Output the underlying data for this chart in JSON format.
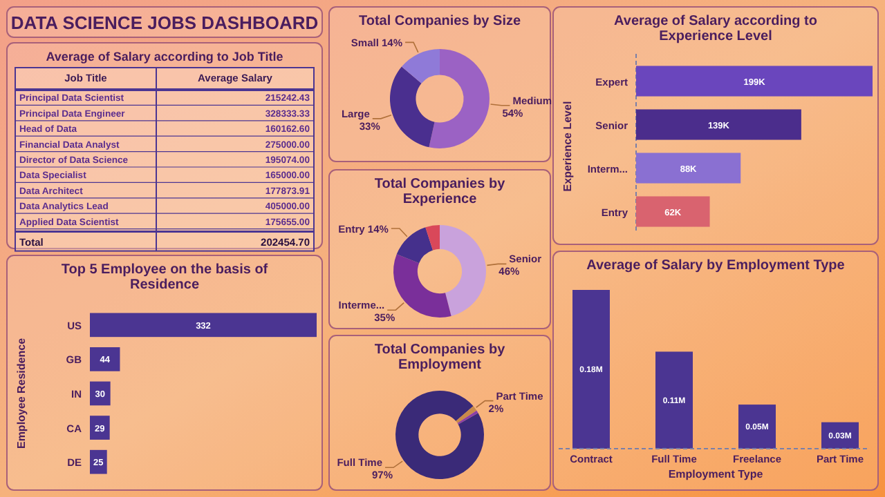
{
  "chart_data": [
    {
      "type": "other",
      "title": "DATA SCIENCE JOBS DASHBOARD"
    },
    {
      "type": "other",
      "title": "Average of Salary according to Job Title",
      "categories": [
        "Principal Data Scientist",
        "Principal Data Engineer",
        "Head of Data",
        "Financial Data Analyst",
        "Director of Data Science",
        "Data Specialist",
        "Data Architect",
        "Data Analytics Lead",
        "Applied Data Scientist"
      ],
      "value_labels": [
        "215242.43",
        "328333.33",
        "160162.60",
        "275000.00",
        "195074.00",
        "165000.00",
        "177873.91",
        "405000.00",
        "175655.00"
      ],
      "annotations": [
        "Job Title",
        "Average Salary",
        "Total",
        "202454.70"
      ]
    },
    {
      "type": "bar",
      "orientation": "horizontal",
      "title": "Top 5 Employee on the basis of Residence",
      "ylabel": "Employee Residence",
      "categories": [
        "US",
        "GB",
        "IN",
        "CA",
        "DE"
      ],
      "values": [
        332,
        44,
        30,
        29,
        25
      ],
      "color": "#4b3592",
      "data_labels": true
    },
    {
      "type": "donut",
      "title": "Total Companies by Size",
      "categories": [
        "Medium",
        "Large",
        "Small"
      ],
      "values": [
        54,
        33,
        14
      ],
      "value_labels": [
        "54%",
        "33%",
        "14%"
      ],
      "colors": [
        "#9b62c4",
        "#4a2f8f",
        "#8f7ad8"
      ]
    },
    {
      "type": "donut",
      "title": "Total Companies by Experience",
      "categories": [
        "Senior",
        "Interme...",
        "Entry",
        null
      ],
      "values": [
        46,
        35,
        14,
        5
      ],
      "value_labels": [
        "46%",
        "35%",
        "14%",
        null
      ],
      "colors": [
        "#c9a2dc",
        "#7a2f9a",
        "#45308c",
        "#d9485a"
      ]
    },
    {
      "type": "donut",
      "title": "Total Companies by Employment",
      "categories": [
        "Full Time",
        "Part Time",
        null
      ],
      "values": [
        97,
        2,
        1
      ],
      "value_labels": [
        "97%",
        "2%",
        null
      ],
      "colors": [
        "#3a2a78",
        "#c98a4a",
        "#8a3fa8"
      ]
    },
    {
      "type": "bar",
      "orientation": "horizontal",
      "title": "Average of Salary according to Experience Level",
      "ylabel": "Experience Level",
      "categories": [
        "Expert",
        "Senior",
        "Interm...",
        "Entry"
      ],
      "values": [
        199,
        139,
        88,
        62
      ],
      "value_labels": [
        "199K",
        "139K",
        "88K",
        "62K"
      ],
      "colors": [
        "#6a46bd",
        "#4b2d8c",
        "#8a70d2",
        "#d9636f"
      ]
    },
    {
      "type": "bar",
      "title": "Average of Salary by Employment Type",
      "xlabel": "Employment Type",
      "categories": [
        "Contract",
        "Full Time",
        "Freelance",
        "Part Time"
      ],
      "values": [
        0.18,
        0.11,
        0.05,
        0.03
      ],
      "value_labels": [
        "0.18M",
        "0.11M",
        "0.05M",
        "0.03M"
      ],
      "color": "#4b3592"
    }
  ]
}
